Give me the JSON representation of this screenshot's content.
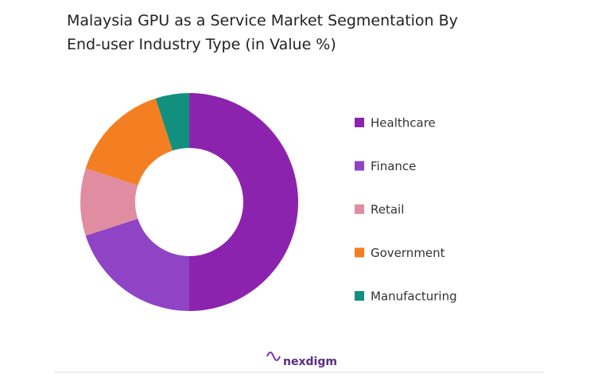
{
  "chart_data": {
    "type": "pie",
    "title": "Malaysia GPU as a Service Market Segmentation By End-user Industry Type (in Value %)",
    "categories": [
      "Healthcare",
      "Finance",
      "Retail",
      "Government",
      "Manufacturing"
    ],
    "values": [
      50,
      20,
      10,
      15,
      5
    ],
    "colors": [
      "#8c23ae",
      "#8e44c4",
      "#e08da2",
      "#f47f22",
      "#12907e"
    ],
    "donut": true,
    "legend": "right"
  },
  "footer": {
    "brand": "nexdigm"
  }
}
